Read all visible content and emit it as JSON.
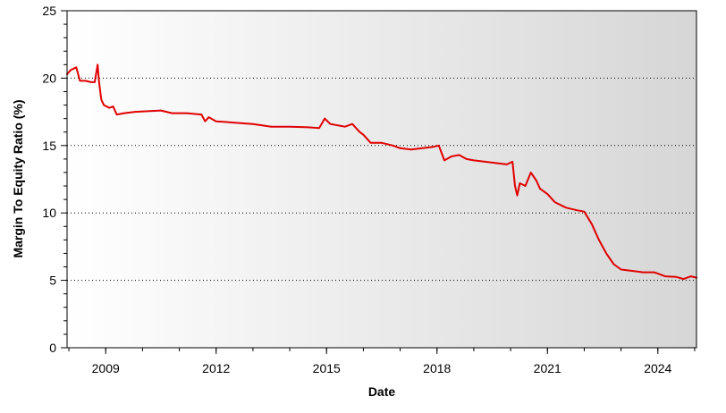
{
  "chart_data": {
    "type": "line",
    "title": "",
    "xlabel": "Date",
    "ylabel": "Margin To Equity Ratio (%)",
    "xlim": [
      2007.95,
      2025.05
    ],
    "ylim": [
      0,
      25
    ],
    "x_tick_labels": [
      "2009",
      "2012",
      "2015",
      "2018",
      "2021",
      "2024"
    ],
    "y_tick_labels": [
      "0",
      "5",
      "10",
      "15",
      "20",
      "25"
    ],
    "grid": "horizontal dotted",
    "legend": "none",
    "colors": {
      "line": "#e00000",
      "background_left": "#ffffff",
      "background_right": "#d6d6d6"
    },
    "series": [
      {
        "x": [
          2007.95,
          2008.05,
          2008.2,
          2008.3,
          2008.45,
          2008.6,
          2008.7,
          2008.78,
          2008.82,
          2008.88,
          2008.95,
          2009.1,
          2009.2,
          2009.3,
          2009.5,
          2009.8,
          2010.2,
          2010.5,
          2010.8,
          2011.2,
          2011.6,
          2011.7,
          2011.8,
          2012.0,
          2012.5,
          2013.0,
          2013.5,
          2014.0,
          2014.5,
          2014.8,
          2014.95,
          2015.1,
          2015.5,
          2015.7,
          2015.9,
          2016.0,
          2016.2,
          2016.5,
          2016.8,
          2017.0,
          2017.3,
          2017.6,
          2017.9,
          2018.05,
          2018.2,
          2018.4,
          2018.6,
          2018.8,
          2019.0,
          2019.3,
          2019.6,
          2019.9,
          2020.05,
          2020.12,
          2020.18,
          2020.25,
          2020.4,
          2020.55,
          2020.7,
          2020.8,
          2021.0,
          2021.2,
          2021.5,
          2021.8,
          2022.0,
          2022.2,
          2022.4,
          2022.6,
          2022.8,
          2023.0,
          2023.3,
          2023.6,
          2023.9,
          2024.2,
          2024.5,
          2024.7,
          2024.9,
          2025.05
        ],
        "y": [
          20.3,
          20.6,
          20.8,
          19.8,
          19.8,
          19.7,
          19.7,
          21.0,
          19.7,
          18.4,
          18.0,
          17.8,
          17.9,
          17.3,
          17.4,
          17.5,
          17.55,
          17.6,
          17.4,
          17.4,
          17.3,
          16.8,
          17.1,
          16.8,
          16.7,
          16.6,
          16.4,
          16.4,
          16.35,
          16.3,
          17.0,
          16.6,
          16.4,
          16.6,
          16.0,
          15.8,
          15.2,
          15.2,
          15.0,
          14.8,
          14.7,
          14.8,
          14.9,
          15.0,
          13.9,
          14.2,
          14.3,
          14.0,
          13.9,
          13.8,
          13.7,
          13.6,
          13.8,
          12.0,
          11.3,
          12.2,
          12.0,
          13.0,
          12.4,
          11.8,
          11.4,
          10.8,
          10.4,
          10.2,
          10.1,
          9.2,
          8.0,
          7.0,
          6.2,
          5.8,
          5.7,
          5.6,
          5.6,
          5.3,
          5.25,
          5.1,
          5.3,
          5.2
        ]
      }
    ]
  }
}
